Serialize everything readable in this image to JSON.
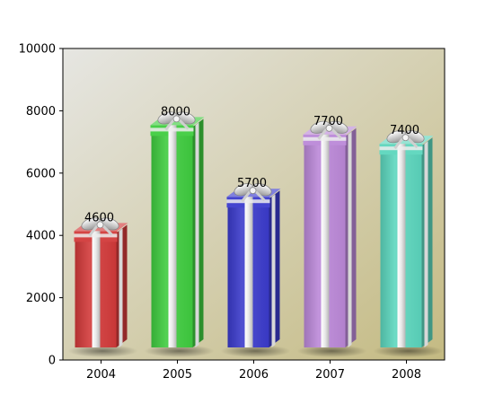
{
  "chart_data": {
    "type": "bar",
    "categories": [
      "2004",
      "2005",
      "2006",
      "2007",
      "2008"
    ],
    "values": [
      4600,
      8000,
      5700,
      7700,
      7400
    ],
    "data_labels": [
      "4600",
      "8000",
      "5700",
      "7700",
      "7400"
    ],
    "title": "",
    "xlabel": "",
    "ylabel": "",
    "ylim": [
      0,
      10000
    ],
    "yticks": [
      0,
      2000,
      4000,
      6000,
      8000,
      10000
    ],
    "ytick_labels": [
      "0",
      "2000",
      "4000",
      "6000",
      "8000",
      "10000"
    ],
    "grid": false,
    "legend": "none",
    "bar_style": "gift-box",
    "colors": [
      "#d23a3a",
      "#3fcc3f",
      "#3b3bcc",
      "#bb88d8",
      "#5cd6bd"
    ],
    "background_gradient": [
      "#e6e6e2",
      "#c4ba82"
    ]
  }
}
